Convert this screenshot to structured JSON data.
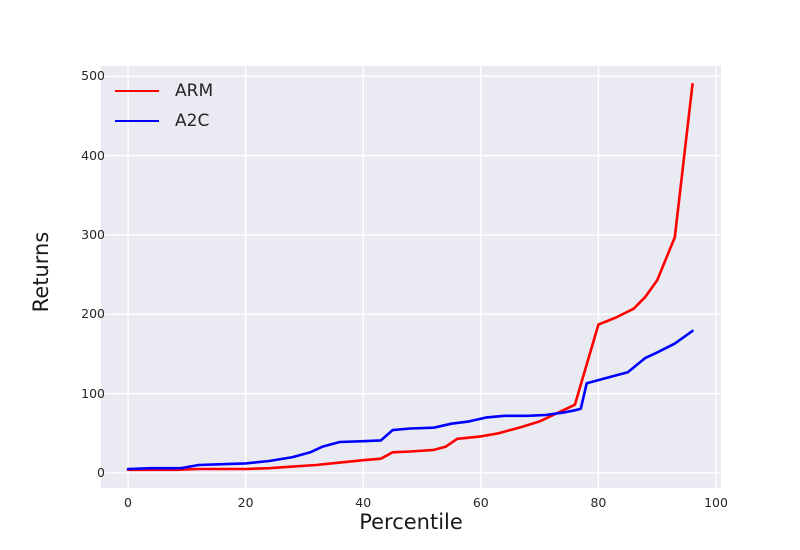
{
  "figure": {
    "background": "#ffffff",
    "plot_background": "#eaeaf2",
    "grid_color": "#ffffff",
    "grid_width": 1.4,
    "tick_color": "#262626",
    "line_width": 2.6
  },
  "chart_data": {
    "type": "line",
    "title": "",
    "xlabel": "Percentile",
    "ylabel": "Returns",
    "xlim": [
      -4.6,
      100.85
    ],
    "ylim": [
      -19,
      513
    ],
    "x_ticks": [
      0,
      20,
      40,
      60,
      80,
      100
    ],
    "y_ticks": [
      0,
      100,
      200,
      300,
      400,
      500
    ],
    "grid": true,
    "legend_position": "upper-left",
    "series": [
      {
        "name": "ARM",
        "color": "#ff0000",
        "x": [
          0,
          4,
          8,
          12,
          16,
          20,
          24,
          28,
          32,
          36,
          40,
          43,
          45,
          48,
          52,
          54,
          56,
          60,
          63,
          67,
          70,
          72,
          74,
          76,
          80,
          83,
          86,
          88,
          90,
          93,
          96
        ],
        "y": [
          4,
          4,
          4,
          5,
          5,
          5,
          6,
          8,
          10,
          13,
          16,
          18,
          26,
          27,
          29,
          33,
          43,
          46,
          50,
          58,
          65,
          72,
          79,
          86,
          187,
          196,
          207,
          222,
          243,
          297,
          490
        ]
      },
      {
        "name": "A2C",
        "color": "#0000ff",
        "x": [
          0,
          4,
          9,
          12,
          16,
          20,
          24,
          28,
          31,
          33,
          36,
          40,
          43,
          45,
          48,
          52,
          55,
          58,
          61,
          64,
          68,
          71,
          74,
          76,
          77,
          78,
          80,
          83,
          85,
          88,
          90,
          93,
          96
        ],
        "y": [
          5,
          6,
          6,
          10,
          11,
          12,
          15,
          20,
          26,
          33,
          39,
          40,
          41,
          54,
          56,
          57,
          62,
          65,
          70,
          72,
          72,
          73,
          76,
          79,
          81,
          113,
          117,
          123,
          127,
          145,
          152,
          163,
          179
        ]
      }
    ]
  }
}
